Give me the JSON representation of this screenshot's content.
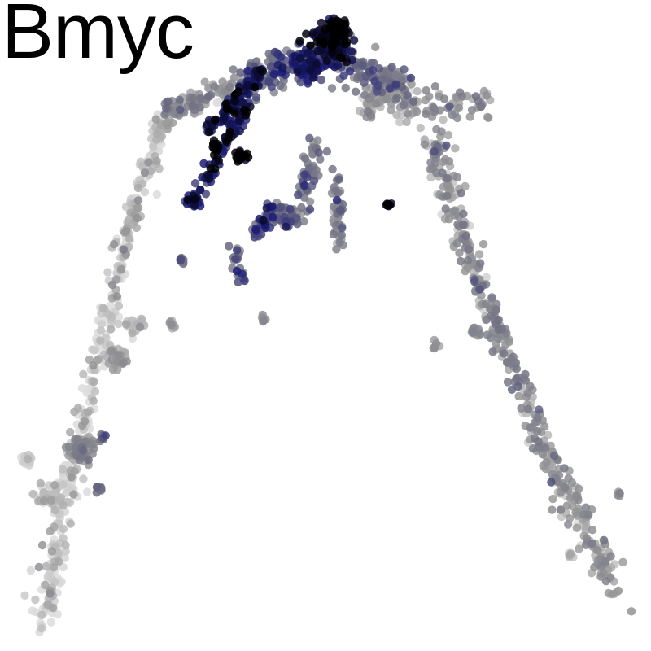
{
  "chart_data": {
    "type": "scatter",
    "title": "Bmyc",
    "xlabel": "",
    "ylabel": "",
    "xlim": [
      0,
      100
    ],
    "ylim": [
      0,
      100
    ],
    "grid": false,
    "axes_visible": false,
    "legend": "none",
    "color_scale": [
      "#dcdcdc",
      "#9a9a9a",
      "#6e6e82",
      "#1c1c78",
      "#000000"
    ],
    "segments": [
      {
        "from": [
          6.5,
          4
        ],
        "to": [
          11,
          28
        ],
        "count": 130,
        "spread": 1.8,
        "level": 0.05
      },
      {
        "from": [
          11,
          28
        ],
        "to": [
          19,
          62
        ],
        "count": 150,
        "spread": 1.3,
        "level": 0.06
      },
      {
        "from": [
          19,
          62
        ],
        "to": [
          25,
          82
        ],
        "count": 120,
        "spread": 1.2,
        "level": 0.08
      },
      {
        "from": [
          25,
          82
        ],
        "to": [
          36,
          87
        ],
        "count": 90,
        "spread": 1.4,
        "level": 0.3
      },
      {
        "from": [
          36,
          87
        ],
        "to": [
          51,
          92
        ],
        "count": 160,
        "spread": 2.2,
        "level": 0.5
      },
      {
        "from": [
          51,
          92
        ],
        "to": [
          62,
          86
        ],
        "count": 130,
        "spread": 2.6,
        "level": 0.45
      },
      {
        "from": [
          60,
          84
        ],
        "to": [
          75,
          84
        ],
        "count": 80,
        "spread": 2.4,
        "level": 0.28
      },
      {
        "from": [
          66,
          80
        ],
        "to": [
          72,
          60
        ],
        "count": 120,
        "spread": 2.0,
        "level": 0.28
      },
      {
        "from": [
          72,
          60
        ],
        "to": [
          83,
          33
        ],
        "count": 140,
        "spread": 1.6,
        "level": 0.32
      },
      {
        "from": [
          83,
          33
        ],
        "to": [
          95,
          8
        ],
        "count": 160,
        "spread": 1.8,
        "level": 0.26
      },
      {
        "from": [
          32,
          80
        ],
        "to": [
          40,
          89
        ],
        "count": 90,
        "spread": 1.1,
        "level": 0.78
      },
      {
        "from": [
          30,
          69
        ],
        "to": [
          40,
          88
        ],
        "count": 90,
        "spread": 1.0,
        "level": 0.8
      },
      {
        "from": [
          49,
          78
        ],
        "to": [
          45,
          66
        ],
        "count": 60,
        "spread": 1.4,
        "level": 0.42
      },
      {
        "from": [
          45,
          66
        ],
        "to": [
          42,
          68
        ],
        "count": 40,
        "spread": 1.2,
        "level": 0.5
      },
      {
        "from": [
          52,
          73
        ],
        "to": [
          52,
          62
        ],
        "count": 45,
        "spread": 1.0,
        "level": 0.38
      },
      {
        "from": [
          42,
          68
        ],
        "to": [
          39,
          64
        ],
        "count": 40,
        "spread": 1.0,
        "level": 0.6
      },
      {
        "from": [
          36,
          62
        ],
        "to": [
          37,
          57
        ],
        "count": 20,
        "spread": 0.9,
        "level": 0.45
      },
      {
        "from": [
          56,
          83
        ],
        "to": [
          62,
          88
        ],
        "count": 60,
        "spread": 1.6,
        "level": 0.22
      }
    ],
    "clusters": [
      {
        "center": [
          51,
          93
        ],
        "count": 130,
        "spread": 2.4,
        "level": 0.88
      },
      {
        "center": [
          52,
          95.5
        ],
        "count": 60,
        "spread": 1.2,
        "level": 1.0
      },
      {
        "center": [
          47,
          90
        ],
        "count": 70,
        "spread": 2.2,
        "level": 0.75
      },
      {
        "center": [
          37,
          76
        ],
        "count": 30,
        "spread": 0.8,
        "level": 0.98
      },
      {
        "center": [
          33,
          77.5
        ],
        "count": 12,
        "spread": 0.6,
        "level": 0.98
      },
      {
        "center": [
          29.5,
          69
        ],
        "count": 22,
        "spread": 0.9,
        "level": 0.75
      },
      {
        "center": [
          28,
          60
        ],
        "count": 10,
        "spread": 0.6,
        "level": 0.5
      },
      {
        "center": [
          26.5,
          50
        ],
        "count": 9,
        "spread": 0.5,
        "level": 0.18
      },
      {
        "center": [
          40.5,
          51
        ],
        "count": 7,
        "spread": 0.5,
        "level": 0.25
      },
      {
        "center": [
          59.5,
          68.5
        ],
        "count": 8,
        "spread": 0.4,
        "level": 0.95
      },
      {
        "center": [
          67,
          47
        ],
        "count": 7,
        "spread": 0.5,
        "level": 0.25
      },
      {
        "center": [
          73,
          49
        ],
        "count": 16,
        "spread": 0.8,
        "level": 0.32
      },
      {
        "center": [
          12.5,
          31
        ],
        "count": 60,
        "spread": 1.7,
        "level": 0.3
      },
      {
        "center": [
          15.5,
          33
        ],
        "count": 8,
        "spread": 0.6,
        "level": 0.5
      },
      {
        "center": [
          15.5,
          25
        ],
        "count": 8,
        "spread": 0.6,
        "level": 0.45
      },
      {
        "center": [
          8,
          24
        ],
        "count": 70,
        "spread": 2.0,
        "level": 0.04
      },
      {
        "center": [
          4,
          29.5
        ],
        "count": 14,
        "spread": 0.8,
        "level": 0.04
      },
      {
        "center": [
          95,
          24
        ],
        "count": 6,
        "spread": 0.4,
        "level": 0.3
      },
      {
        "center": [
          87.5,
          14.5
        ],
        "count": 6,
        "spread": 0.5,
        "level": 0.12
      },
      {
        "center": [
          21,
          50
        ],
        "count": 25,
        "spread": 1.2,
        "level": 0.1
      },
      {
        "center": [
          18,
          45
        ],
        "count": 30,
        "spread": 1.4,
        "level": 0.22
      }
    ]
  }
}
